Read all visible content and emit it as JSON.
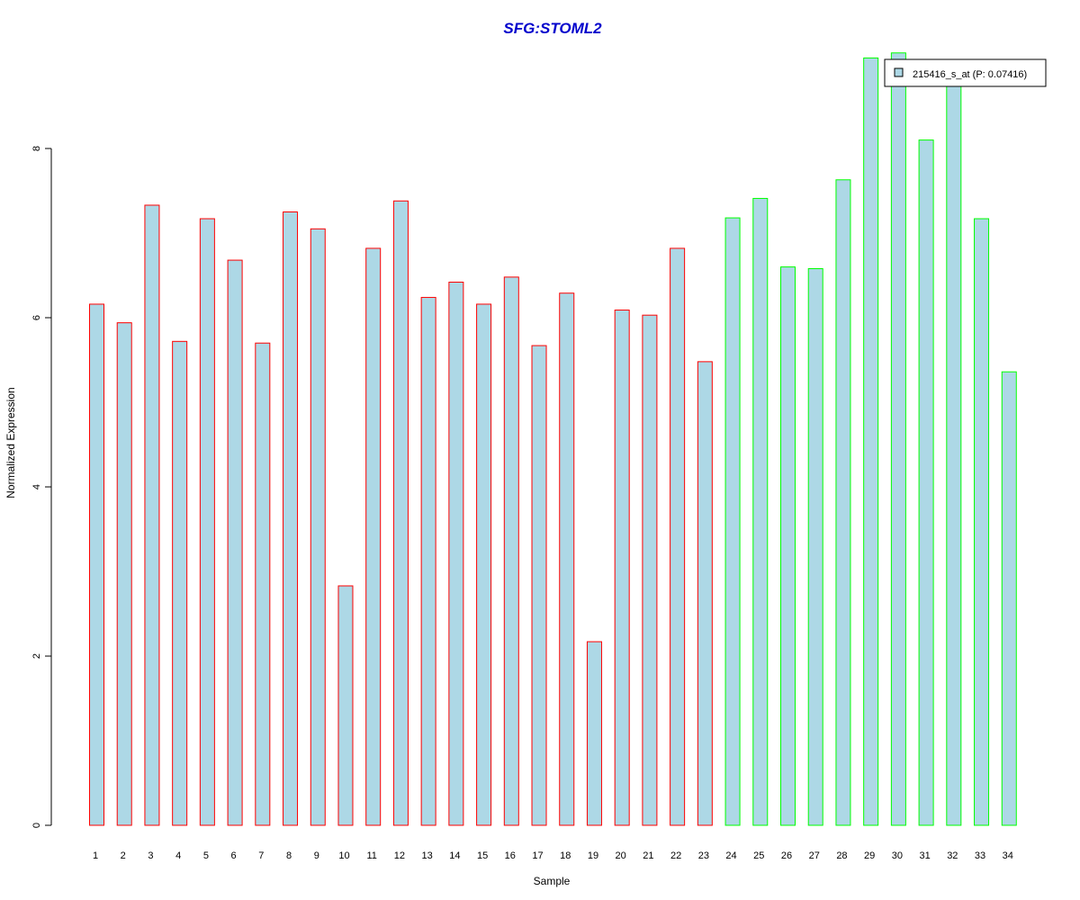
{
  "chart_data": {
    "type": "bar",
    "title": "SFG:STOML2",
    "xlabel": "Sample",
    "ylabel": "Normalized Expression",
    "ylim": [
      0,
      9.25
    ],
    "yticks": [
      0,
      2,
      4,
      6,
      8
    ],
    "grid": false,
    "bar_fill": "#add8e6",
    "categories": [
      "1",
      "2",
      "3",
      "4",
      "5",
      "6",
      "7",
      "8",
      "9",
      "10",
      "11",
      "12",
      "13",
      "14",
      "15",
      "16",
      "17",
      "18",
      "19",
      "20",
      "21",
      "22",
      "23",
      "24",
      "25",
      "26",
      "27",
      "28",
      "29",
      "30",
      "31",
      "32",
      "33",
      "34"
    ],
    "values": [
      6.16,
      5.94,
      7.33,
      5.72,
      7.17,
      6.68,
      5.7,
      7.25,
      7.05,
      2.83,
      6.82,
      7.38,
      6.24,
      6.42,
      6.16,
      6.48,
      5.67,
      6.29,
      2.17,
      6.09,
      6.03,
      6.82,
      5.48,
      7.18,
      7.41,
      6.6,
      6.58,
      7.63,
      9.07,
      9.13,
      8.1,
      8.79,
      7.17,
      5.36
    ],
    "groups": [
      {
        "color": "#ff0000",
        "range": [
          1,
          23
        ]
      },
      {
        "color": "#00ff00",
        "range": [
          24,
          34
        ]
      }
    ],
    "legend": {
      "position": "top-right",
      "label": "215416_s_at (P: 0.07416)",
      "swatch_color": "#add8e6"
    }
  }
}
